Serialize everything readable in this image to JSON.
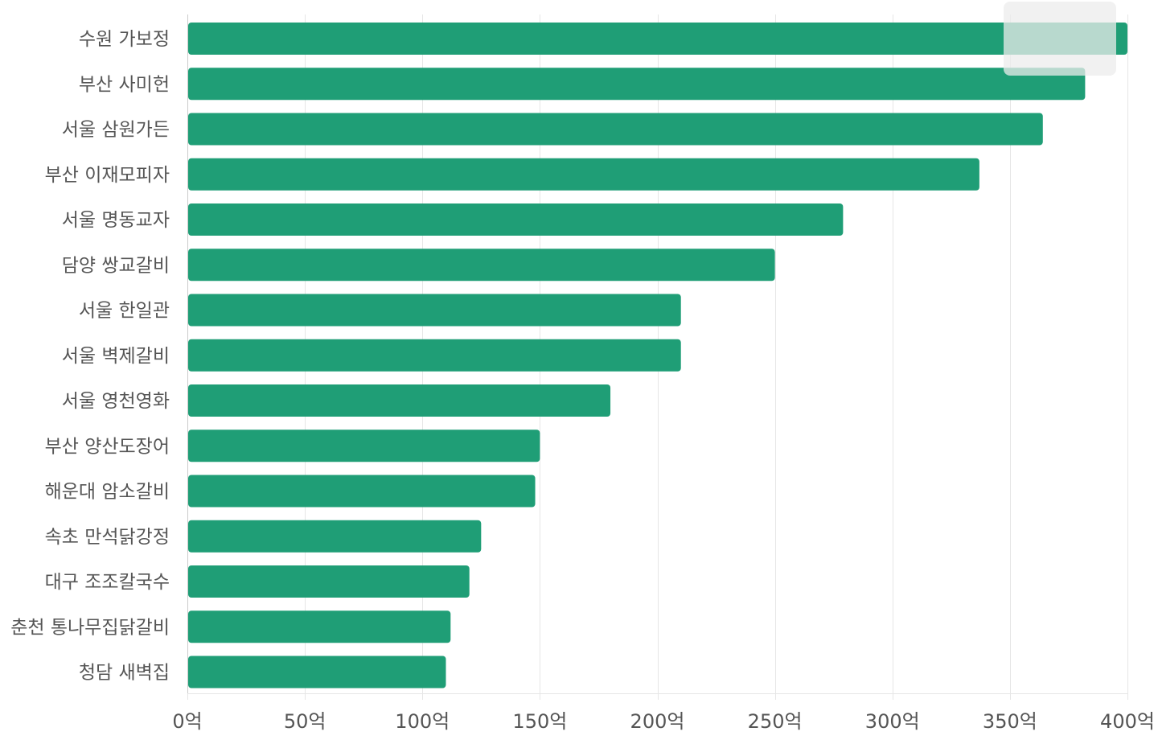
{
  "chart_data": {
    "type": "bar",
    "orientation": "horizontal",
    "categories": [
      "수원 가보정",
      "부산 사미헌",
      "서울 삼원가든",
      "부산 이재모피자",
      "서울 명동교자",
      "담양 쌍교갈비",
      "서울 한일관",
      "서울 벽제갈비",
      "서울 영천영화",
      "부산 양산도장어",
      "해운대 암소갈비",
      "속초 만석닭강정",
      "대구 조조칼국수",
      "춘천 통나무집닭갈비",
      "청담 새벽집"
    ],
    "values": [
      400,
      382,
      364,
      337,
      279,
      250,
      210,
      210,
      180,
      150,
      148,
      125,
      120,
      112,
      110
    ],
    "xlim": [
      0,
      400
    ],
    "x_ticks": [
      0,
      50,
      100,
      150,
      200,
      250,
      300,
      350,
      400
    ],
    "x_tick_labels": [
      "0억",
      "50억",
      "100억",
      "150억",
      "200억",
      "250억",
      "300억",
      "350억",
      "400억"
    ],
    "title": "",
    "xlabel": "",
    "ylabel": "",
    "grid": "vertical",
    "legend_position": "top-right",
    "bar_color": "#1f9e76",
    "grid_color": "#e6e6e6",
    "label_color": "#555555"
  }
}
